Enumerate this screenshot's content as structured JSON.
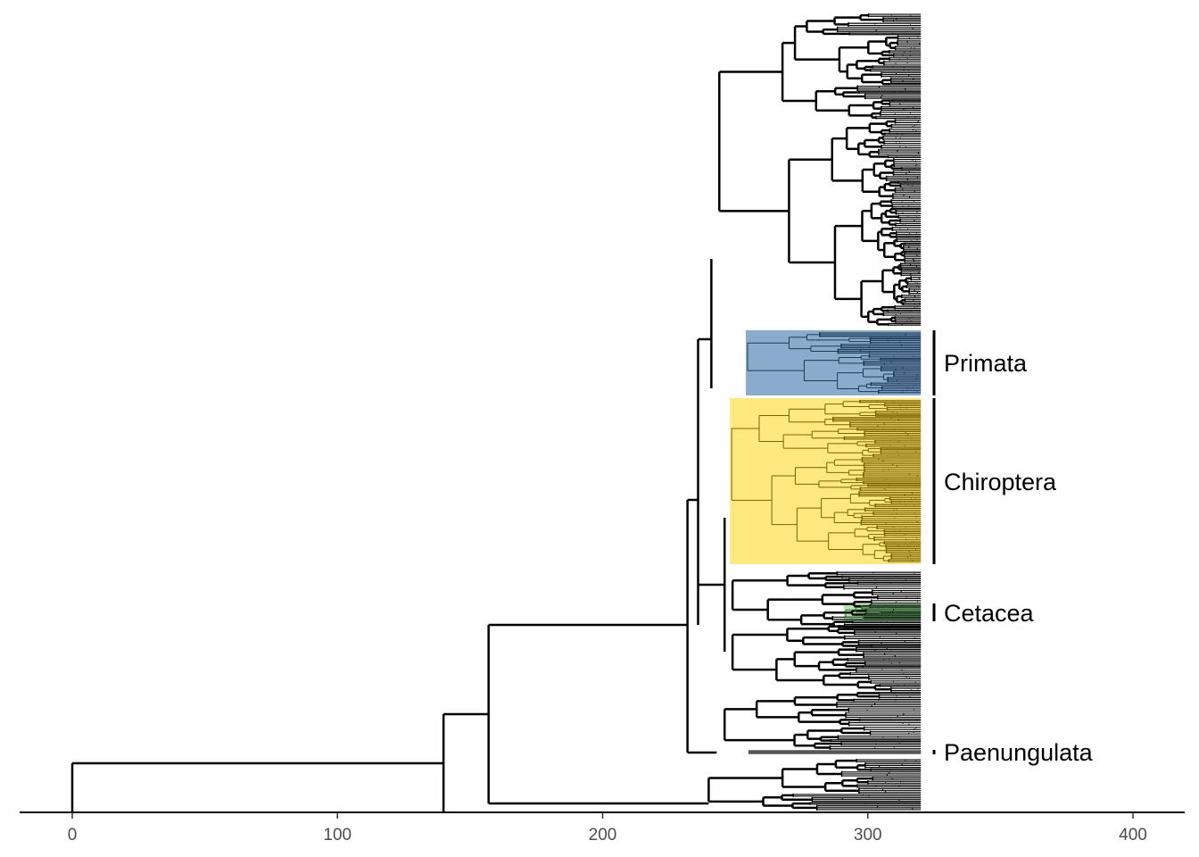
{
  "chart_data": {
    "type": "phylogenetic-tree",
    "title": "",
    "xlabel": "",
    "ylabel": "",
    "xlim": [
      -20,
      420
    ],
    "x_ticks": [
      0,
      100,
      200,
      300,
      400
    ],
    "x_tick_labels": [
      "0",
      "100",
      "200",
      "300",
      "400"
    ],
    "tip_age": 320,
    "grid": false,
    "legend": "none",
    "backbone_nodes": [
      {
        "name": "root",
        "age": 0
      },
      {
        "name": "node-1",
        "age": 140
      },
      {
        "name": "node-2",
        "age": 157
      },
      {
        "name": "node-3",
        "age": 232
      },
      {
        "name": "node-4",
        "age": 236
      },
      {
        "name": "node-5",
        "age": 241
      },
      {
        "name": "node-6",
        "age": 246
      },
      {
        "name": "node-7",
        "age": 248
      }
    ],
    "clades": [
      {
        "label": "Primata",
        "crown_age": 254,
        "color": "#8AACCC",
        "shade": "#1E3A5A"
      },
      {
        "label": "Chiroptera",
        "crown_age": 248,
        "color": "#FFE97F",
        "shade": "#7A6200"
      },
      {
        "label": "Cetacea",
        "crown_age": 291,
        "color": "#B8E6B0",
        "shade": "#2E6B2E"
      },
      {
        "label": "Paenungulata",
        "crown_age": 255,
        "color": "#808080",
        "shade": "#555555"
      }
    ]
  }
}
